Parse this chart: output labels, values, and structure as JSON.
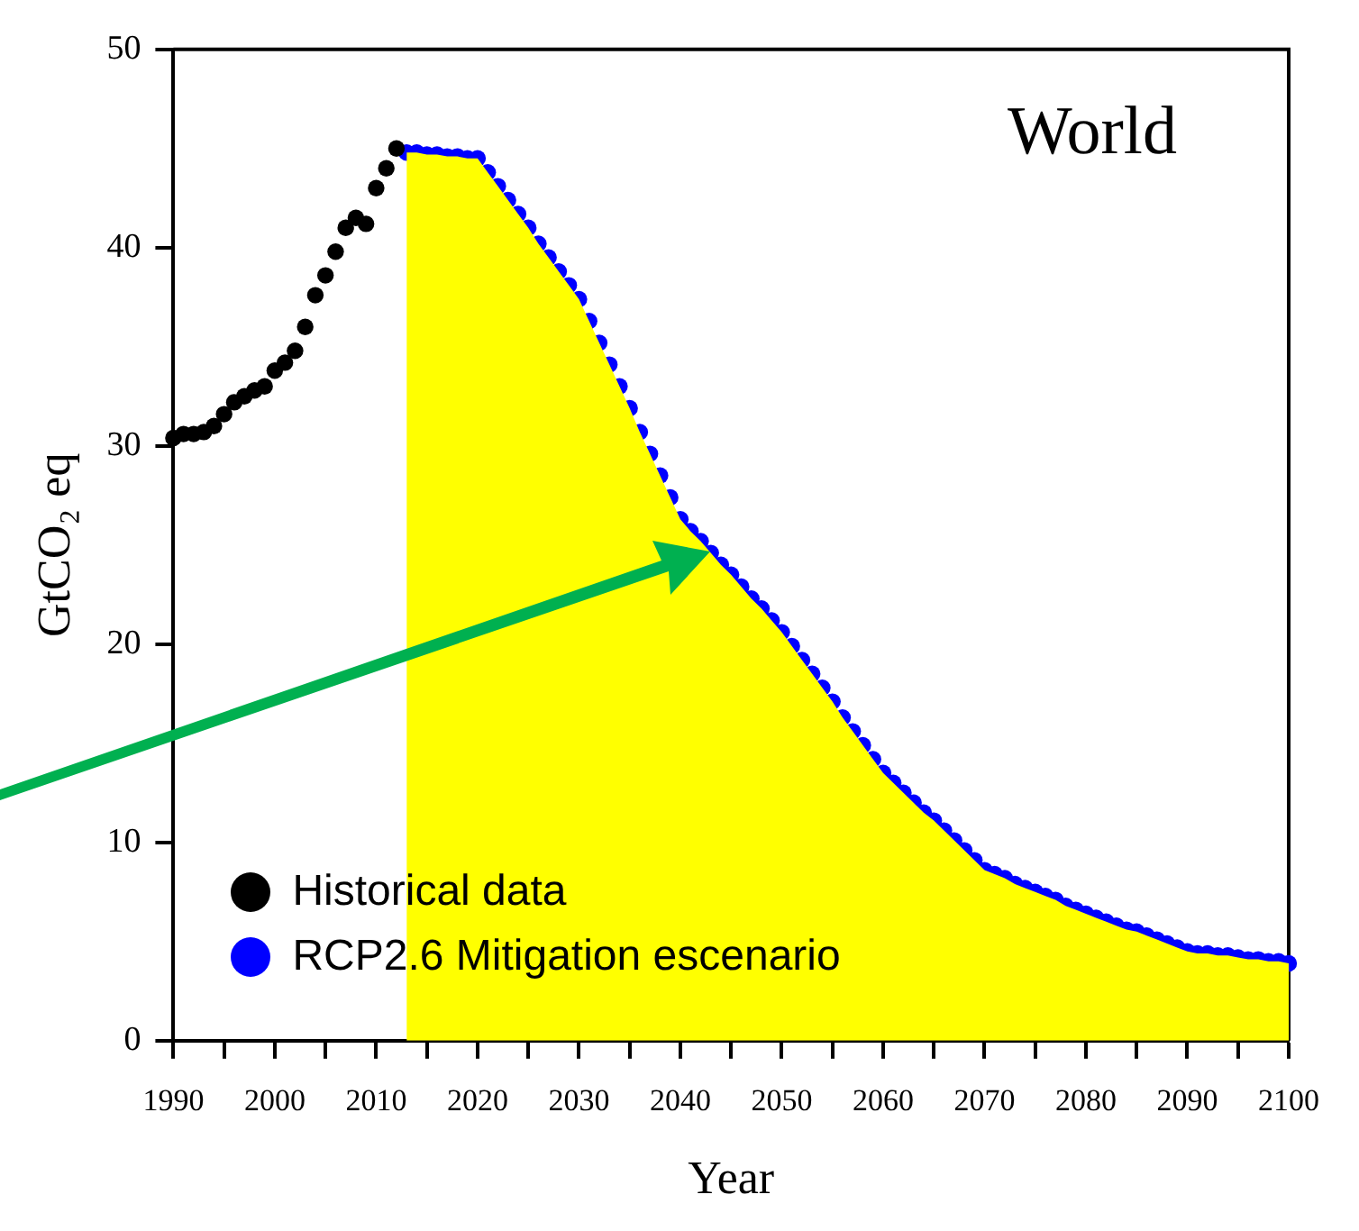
{
  "chart_data": {
    "type": "scatter",
    "xlabel": "Year",
    "ylabel": "GtCO₂ eq",
    "annotations": [
      "World"
    ],
    "legend": "bottom left",
    "marker": "circle",
    "grid": false,
    "xlim": [
      1990,
      2100
    ],
    "ylim": [
      0,
      50
    ],
    "xticks": [
      1990,
      {
        "value": 1995,
        "label": null
      },
      2000,
      {
        "value": 2005,
        "label": null
      },
      2010,
      {
        "value": 2015,
        "label": null
      },
      2020,
      {
        "value": 2025,
        "label": null
      },
      2030,
      {
        "value": 2035,
        "label": null
      },
      2040,
      {
        "value": 2045,
        "label": null
      },
      2050,
      {
        "value": 2055,
        "label": null
      },
      2060,
      {
        "value": 2065,
        "label": null
      },
      2070,
      {
        "value": 2075,
        "label": null
      },
      2080,
      {
        "value": 2085,
        "label": null
      },
      2090,
      {
        "value": 2095,
        "label": null
      },
      2100
    ],
    "yticks": [
      0,
      10,
      20,
      30,
      40,
      50
    ],
    "series": [
      {
        "type": "area",
        "marker": "none",
        "color": "#ffff00",
        "x": [
          2013,
          2014,
          2015,
          2016,
          2017,
          2018,
          2019,
          2020,
          2021,
          2022,
          2023,
          2024,
          2025,
          2026,
          2027,
          2028,
          2029,
          2030,
          2031,
          2032,
          2033,
          2034,
          2035,
          2036,
          2037,
          2038,
          2039,
          2040,
          2041,
          2042,
          2043,
          2044,
          2045,
          2046,
          2047,
          2048,
          2049,
          2050,
          2051,
          2052,
          2053,
          2054,
          2055,
          2056,
          2057,
          2058,
          2059,
          2060,
          2061,
          2062,
          2063,
          2064,
          2065,
          2066,
          2067,
          2068,
          2069,
          2070,
          2071,
          2072,
          2073,
          2074,
          2075,
          2076,
          2077,
          2078,
          2079,
          2080,
          2081,
          2082,
          2083,
          2084,
          2085,
          2086,
          2087,
          2088,
          2089,
          2090,
          2091,
          2092,
          2093,
          2094,
          2095,
          2096,
          2097,
          2098,
          2099,
          2100
        ],
        "values": [
          44.8,
          44.8,
          44.7,
          44.7,
          44.6,
          44.6,
          44.5,
          44.5,
          43.8,
          43.1,
          42.4,
          41.7,
          41.0,
          40.2,
          39.5,
          38.8,
          38.1,
          37.4,
          36.3,
          35.2,
          34.1,
          33.0,
          31.9,
          30.7,
          29.6,
          28.5,
          27.4,
          26.3,
          25.7,
          25.2,
          24.6,
          24.0,
          23.5,
          22.9,
          22.3,
          21.8,
          21.2,
          20.6,
          19.9,
          19.2,
          18.5,
          17.8,
          17.1,
          16.3,
          15.6,
          14.9,
          14.2,
          13.5,
          13.0,
          12.5,
          12.0,
          11.5,
          11.1,
          10.6,
          10.1,
          9.6,
          9.1,
          8.6,
          8.4,
          8.2,
          7.9,
          7.7,
          7.5,
          7.3,
          7.1,
          6.8,
          6.6,
          6.4,
          6.2,
          6.0,
          5.8,
          5.6,
          5.5,
          5.3,
          5.1,
          4.9,
          4.7,
          4.5,
          4.4,
          4.4,
          4.3,
          4.3,
          4.2,
          4.1,
          4.1,
          4.0,
          4.0,
          3.9
        ]
      },
      {
        "name": "Historical data",
        "color": "#000000",
        "x": [
          1990,
          1991,
          1992,
          1993,
          1994,
          1995,
          1996,
          1997,
          1998,
          1999,
          2000,
          2001,
          2002,
          2003,
          2004,
          2005,
          2006,
          2007,
          2008,
          2009,
          2010,
          2011,
          2012
        ],
        "values": [
          30.4,
          30.6,
          30.6,
          30.7,
          31.0,
          31.6,
          32.2,
          32.5,
          32.8,
          33.0,
          33.8,
          34.2,
          34.8,
          36.0,
          37.6,
          38.6,
          39.8,
          41.0,
          41.5,
          41.2,
          43.0,
          44.0,
          45.0
        ]
      },
      {
        "name": "RCP2.6 Mitigation escenario",
        "color": "#0000ff",
        "x": [
          2013,
          2014,
          2015,
          2016,
          2017,
          2018,
          2019,
          2020,
          2021,
          2022,
          2023,
          2024,
          2025,
          2026,
          2027,
          2028,
          2029,
          2030,
          2031,
          2032,
          2033,
          2034,
          2035,
          2036,
          2037,
          2038,
          2039,
          2040,
          2041,
          2042,
          2043,
          2044,
          2045,
          2046,
          2047,
          2048,
          2049,
          2050,
          2051,
          2052,
          2053,
          2054,
          2055,
          2056,
          2057,
          2058,
          2059,
          2060,
          2061,
          2062,
          2063,
          2064,
          2065,
          2066,
          2067,
          2068,
          2069,
          2070,
          2071,
          2072,
          2073,
          2074,
          2075,
          2076,
          2077,
          2078,
          2079,
          2080,
          2081,
          2082,
          2083,
          2084,
          2085,
          2086,
          2087,
          2088,
          2089,
          2090,
          2091,
          2092,
          2093,
          2094,
          2095,
          2096,
          2097,
          2098,
          2099,
          2100
        ],
        "values": [
          44.8,
          44.8,
          44.7,
          44.7,
          44.6,
          44.6,
          44.5,
          44.5,
          43.8,
          43.1,
          42.4,
          41.7,
          41.0,
          40.2,
          39.5,
          38.8,
          38.1,
          37.4,
          36.3,
          35.2,
          34.1,
          33.0,
          31.9,
          30.7,
          29.6,
          28.5,
          27.4,
          26.3,
          25.7,
          25.2,
          24.6,
          24.0,
          23.5,
          22.9,
          22.3,
          21.8,
          21.2,
          20.6,
          19.9,
          19.2,
          18.5,
          17.8,
          17.1,
          16.3,
          15.6,
          14.9,
          14.2,
          13.5,
          13.0,
          12.5,
          12.0,
          11.5,
          11.1,
          10.6,
          10.1,
          9.6,
          9.1,
          8.6,
          8.4,
          8.2,
          7.9,
          7.7,
          7.5,
          7.3,
          7.1,
          6.8,
          6.6,
          6.4,
          6.2,
          6.0,
          5.8,
          5.6,
          5.5,
          5.3,
          5.1,
          4.9,
          4.7,
          4.5,
          4.4,
          4.4,
          4.3,
          4.3,
          4.2,
          4.1,
          4.1,
          4.0,
          4.0,
          3.9
        ]
      }
    ]
  }
}
